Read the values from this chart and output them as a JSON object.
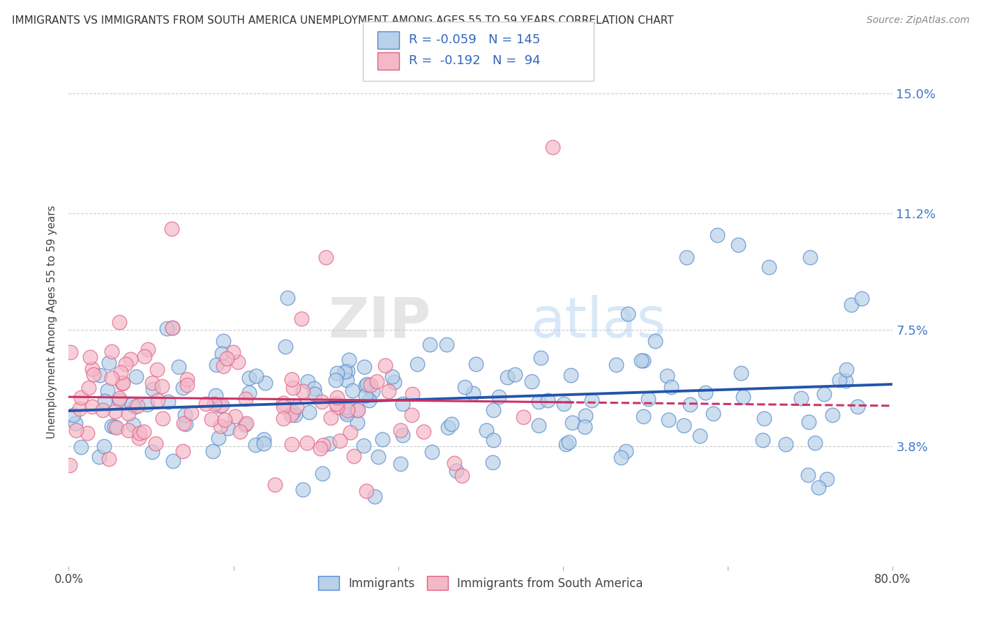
{
  "title": "IMMIGRANTS VS IMMIGRANTS FROM SOUTH AMERICA UNEMPLOYMENT AMONG AGES 55 TO 59 YEARS CORRELATION CHART",
  "source": "Source: ZipAtlas.com",
  "ylabel": "Unemployment Among Ages 55 to 59 years",
  "xlim": [
    0,
    80
  ],
  "ylim": [
    0,
    15.5
  ],
  "yticks": [
    3.8,
    7.5,
    11.2,
    15.0
  ],
  "ytick_labels": [
    "3.8%",
    "7.5%",
    "11.2%",
    "15.0%"
  ],
  "legend1_R": "-0.059",
  "legend1_N": "145",
  "legend2_R": "-0.192",
  "legend2_N": "94",
  "color_immigrants_face": "#b8d0e8",
  "color_immigrants_edge": "#5588cc",
  "color_south_face": "#f5b8c8",
  "color_south_edge": "#e06080",
  "color_trend_immigrants": "#2255aa",
  "color_trend_south": "#cc3366",
  "background_color": "#ffffff",
  "watermark_zip": "ZIP",
  "watermark_atlas": "atlas",
  "grid_color": "#cccccc"
}
